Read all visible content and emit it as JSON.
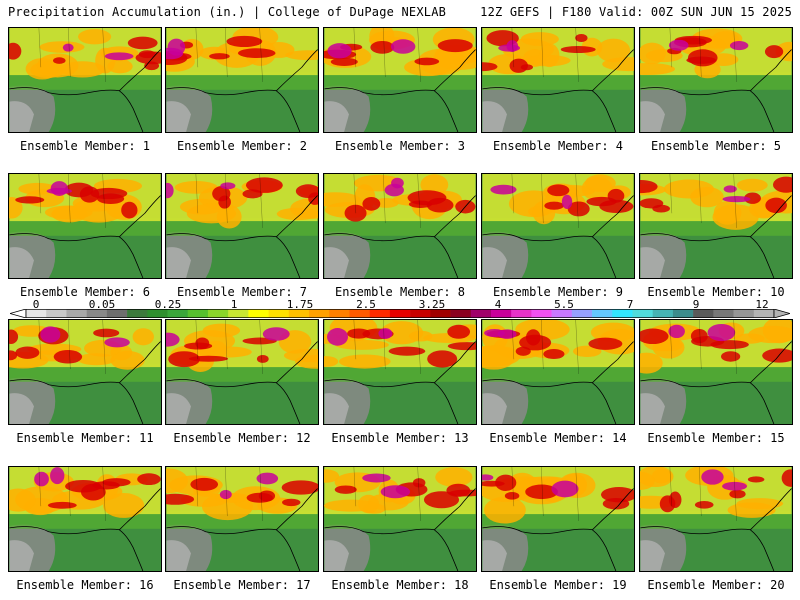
{
  "header": {
    "left_title": "Precipitation Accumulation (in.) | College of DuPage NEXLAB",
    "right_title": "12Z GEFS | F180 Valid: 00Z SUN JUN 15 2025"
  },
  "colorbar": {
    "tick_labels": [
      "0",
      "0.05",
      "0.25",
      "1",
      "1.75",
      "2.5",
      "3.25",
      "4",
      "5.5",
      "7",
      "9",
      "12"
    ],
    "colors": [
      "#e6e6e6",
      "#c8c8c8",
      "#a8a8a8",
      "#888888",
      "#6e6e6e",
      "#3c7a3c",
      "#2f8f2f",
      "#3aa63a",
      "#56c02e",
      "#8ad62a",
      "#c8e632",
      "#ffff00",
      "#ffe000",
      "#ffc000",
      "#ffa000",
      "#ff8000",
      "#ff5a00",
      "#ff2a00",
      "#e60000",
      "#c80000",
      "#a00000",
      "#8a0020",
      "#a0006a",
      "#c8009a",
      "#e632c8",
      "#f050f0",
      "#c878ff",
      "#96a0ff",
      "#64c8ff",
      "#32e6ff",
      "#50dcdc",
      "#46b4b4",
      "#3c8c8c",
      "#5a5a5a",
      "#787878",
      "#969696",
      "#b4b4b4"
    ]
  },
  "panels": [
    {
      "label": "Ensemble Member: 1"
    },
    {
      "label": "Ensemble Member: 2"
    },
    {
      "label": "Ensemble Member: 3"
    },
    {
      "label": "Ensemble Member: 4"
    },
    {
      "label": "Ensemble Member: 5"
    },
    {
      "label": "Ensemble Member: 6"
    },
    {
      "label": "Ensemble Member: 7"
    },
    {
      "label": "Ensemble Member: 8"
    },
    {
      "label": "Ensemble Member: 9"
    },
    {
      "label": "Ensemble Member: 10"
    },
    {
      "label": "Ensemble Member: 11"
    },
    {
      "label": "Ensemble Member: 12"
    },
    {
      "label": "Ensemble Member: 13"
    },
    {
      "label": "Ensemble Member: 14"
    },
    {
      "label": "Ensemble Member: 15"
    },
    {
      "label": "Ensemble Member: 16"
    },
    {
      "label": "Ensemble Member: 17"
    },
    {
      "label": "Ensemble Member: 18"
    },
    {
      "label": "Ensemble Member: 19"
    },
    {
      "label": "Ensemble Member: 20"
    }
  ]
}
